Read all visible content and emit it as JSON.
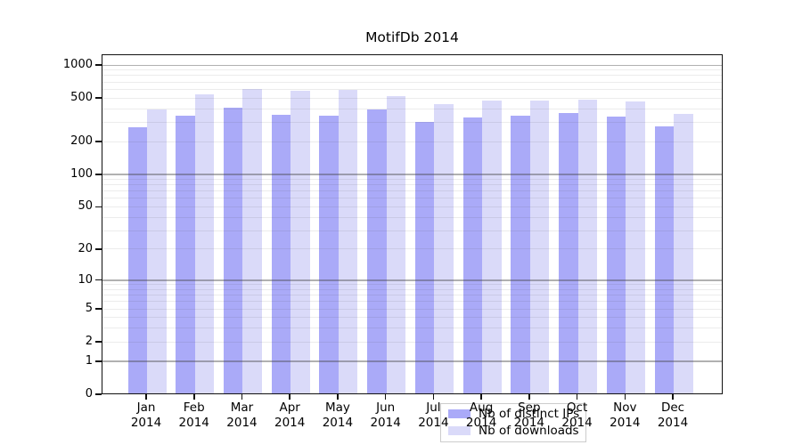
{
  "chart_data": {
    "type": "bar",
    "title": "MotifDb 2014",
    "categories": [
      "Jan",
      "Feb",
      "Mar",
      "Apr",
      "May",
      "Jun",
      "Jul",
      "Aug",
      "Sep",
      "Oct",
      "Nov",
      "Dec"
    ],
    "category_year_line": "2014",
    "series": [
      {
        "name": "Nb of distinct IPs",
        "color": "#aaaaf8",
        "values": [
          265,
          340,
          400,
          345,
          340,
          385,
          297,
          325,
          340,
          358,
          332,
          270
        ]
      },
      {
        "name": "Nb of downloads",
        "color": "#dadaf9",
        "values": [
          385,
          530,
          595,
          575,
          580,
          510,
          430,
          465,
          465,
          475,
          460,
          350
        ]
      }
    ],
    "yscale": "log1p",
    "y_tick_labels": [
      0,
      1,
      2,
      5,
      10,
      20,
      50,
      100,
      200,
      500,
      1000
    ],
    "ylim": [
      0,
      1250
    ],
    "grid": "minor log gridlines (2-9 per decade) light gray; major gridlines at 1,10,100,1000 darker gray, drawn over bars",
    "legend_position": "bottom-center inside plot"
  }
}
